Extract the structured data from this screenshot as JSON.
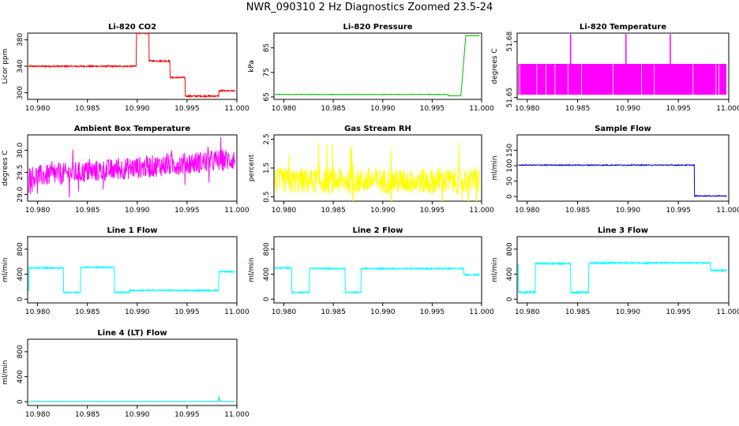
{
  "title": "NWR_090310  2 Hz Diagnostics Zoomed 23.5-24",
  "chart_data": [
    {
      "type": "line",
      "title": "Li-820 CO2",
      "ylabel": "Licor ppm",
      "color": "#ff0000",
      "xlim": [
        10.979,
        11.0
      ],
      "ylim": [
        290,
        390
      ],
      "xticks": [
        "10.980",
        "10.985",
        "10.990",
        "10.995",
        "11.000"
      ],
      "yticks": [
        "300",
        "340",
        "380"
      ],
      "series": [
        {
          "x": [
            10.9791,
            10.9899,
            10.9899,
            10.9912,
            10.9912,
            10.9933,
            10.9933,
            10.9948,
            10.9948,
            10.9982,
            10.9982,
            10.9998
          ],
          "values": [
            340,
            340,
            390,
            390,
            348,
            348,
            323,
            323,
            295,
            295,
            303,
            303
          ]
        }
      ],
      "noise": 1.2
    },
    {
      "type": "line",
      "title": "Li-820 Pressure",
      "ylabel": "kPa",
      "color": "#00bb00",
      "xlim": [
        10.979,
        11.0
      ],
      "ylim": [
        64,
        91
      ],
      "xticks": [
        "10.980",
        "10.985",
        "10.990",
        "10.995",
        "11.000"
      ],
      "yticks": [
        "65",
        "75",
        "85"
      ],
      "series": [
        {
          "x": [
            10.9791,
            10.9966,
            10.9966,
            10.9979,
            10.9982,
            10.9984,
            10.9998
          ],
          "values": [
            66,
            66,
            65.5,
            65.5,
            80,
            90,
            90
          ]
        }
      ],
      "noise": 0.1
    },
    {
      "type": "line",
      "title": "Li-820 Temperature",
      "ylabel": "degrees C",
      "color": "#ff00ff",
      "xlim": [
        10.979,
        11.0
      ],
      "ylim": [
        51.649,
        51.6845
      ],
      "xticks": [
        "10.980",
        "10.985",
        "10.990",
        "10.995",
        "11.000"
      ],
      "yticks": [
        "51.65",
        "51.68"
      ],
      "series": [
        {
          "x": [
            10.9791,
            10.9998
          ],
          "values": [
            51.668,
            51.668
          ]
        }
      ],
      "band": [
        51.6515,
        51.668
      ],
      "spikes": [
        10.9843,
        10.9898,
        10.9942
      ],
      "spike_top": 51.684
    },
    {
      "type": "line",
      "title": "Ambient Box Temperature",
      "ylabel": "degrees C",
      "color": "#ff00ff",
      "xlim": [
        10.979,
        11.0
      ],
      "ylim": [
        28.85,
        30.35
      ],
      "xticks": [
        "10.980",
        "10.985",
        "10.990",
        "10.995",
        "11.000"
      ],
      "yticks": [
        "29.0",
        "29.5",
        "30.0"
      ],
      "series": [
        {
          "x": [
            10.9791,
            10.9998
          ],
          "values": [
            29.4,
            29.8
          ]
        }
      ],
      "noise": 0.25
    },
    {
      "type": "line",
      "title": "Gas Stream RH",
      "ylabel": "percent",
      "color": "#ffff00",
      "xlim": [
        10.979,
        11.0
      ],
      "ylim": [
        0.35,
        2.65
      ],
      "xticks": [
        "10.980",
        "10.985",
        "10.990",
        "10.995",
        "11.000"
      ],
      "yticks": [
        "0.5",
        "1.5",
        "2.5"
      ],
      "series": [
        {
          "x": [
            10.9791,
            10.9998
          ],
          "values": [
            1.05,
            1.05
          ]
        }
      ],
      "noise": 0.45
    },
    {
      "type": "line",
      "title": "Sample Flow",
      "ylabel": "ml/min",
      "color": "#0000cc",
      "xlim": [
        10.979,
        11.0
      ],
      "ylim": [
        -15,
        200
      ],
      "xticks": [
        "10.980",
        "10.985",
        "10.990",
        "10.995",
        "11.000"
      ],
      "yticks": [
        "0",
        "50",
        "100",
        "150"
      ],
      "series": [
        {
          "x": [
            10.9791,
            10.9966,
            10.9966,
            10.9998
          ],
          "values": [
            102,
            102,
            2,
            2
          ]
        }
      ],
      "noise": 1.5
    },
    {
      "type": "line",
      "title": "Line 1 Flow",
      "ylabel": "ml/min",
      "color": "#00ffff",
      "xlim": [
        10.979,
        11.0
      ],
      "ylim": [
        -60,
        1000
      ],
      "xticks": [
        "10.980",
        "10.985",
        "10.990",
        "10.995",
        "11.000"
      ],
      "yticks": [
        "0",
        "400",
        "800"
      ],
      "series": [
        {
          "x": [
            10.9791,
            10.9791,
            10.9826,
            10.9826,
            10.9843,
            10.9843,
            10.9877,
            10.9877,
            10.9892,
            10.9892,
            10.9982,
            10.9982,
            10.9998
          ],
          "values": [
            130,
            500,
            500,
            110,
            110,
            510,
            510,
            110,
            110,
            140,
            140,
            440,
            440
          ]
        }
      ],
      "noise": 12
    },
    {
      "type": "line",
      "title": "Line 2 Flow",
      "ylabel": "ml/min",
      "color": "#00ffff",
      "xlim": [
        10.979,
        11.0
      ],
      "ylim": [
        -60,
        1000
      ],
      "xticks": [
        "10.980",
        "10.985",
        "10.990",
        "10.995",
        "11.000"
      ],
      "yticks": [
        "0",
        "400",
        "800"
      ],
      "series": [
        {
          "x": [
            10.9791,
            10.9808,
            10.9808,
            10.9826,
            10.9826,
            10.9862,
            10.9862,
            10.9878,
            10.9878,
            10.9982,
            10.9982,
            10.9998
          ],
          "values": [
            500,
            500,
            110,
            110,
            490,
            490,
            110,
            110,
            490,
            490,
            390,
            390
          ]
        }
      ],
      "noise": 12
    },
    {
      "type": "line",
      "title": "Line 3 Flow",
      "ylabel": "ml/min",
      "color": "#00ffff",
      "xlim": [
        10.979,
        11.0
      ],
      "ylim": [
        -60,
        1000
      ],
      "xticks": [
        "10.980",
        "10.985",
        "10.990",
        "10.995",
        "11.000"
      ],
      "yticks": [
        "0",
        "400",
        "800"
      ],
      "series": [
        {
          "x": [
            10.9791,
            10.9791,
            10.9808,
            10.9808,
            10.9843,
            10.9843,
            10.9861,
            10.9861,
            10.9982,
            10.9982,
            10.9998
          ],
          "values": [
            560,
            110,
            110,
            570,
            570,
            110,
            110,
            580,
            580,
            460,
            460
          ]
        }
      ],
      "noise": 15
    },
    {
      "type": "line",
      "title": "Line 4 (LT) Flow",
      "ylabel": "ml/min",
      "color": "#00dddd",
      "xlim": [
        10.979,
        11.0
      ],
      "ylim": [
        -60,
        1000
      ],
      "xticks": [
        "10.980",
        "10.985",
        "10.990",
        "10.995",
        "11.000"
      ],
      "yticks": [
        "0",
        "400",
        "800"
      ],
      "series": [
        {
          "x": [
            10.9791,
            10.9982,
            10.9982,
            10.9983,
            10.9984,
            10.9998
          ],
          "values": [
            5,
            5,
            90,
            5,
            5,
            5
          ]
        }
      ],
      "noise": 2
    }
  ]
}
